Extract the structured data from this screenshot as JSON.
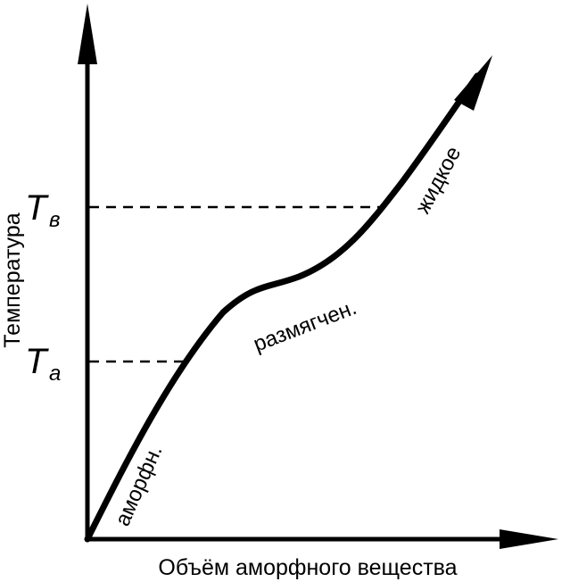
{
  "diagram": {
    "y_axis_label": "Температура",
    "x_axis_label": "Объём аморфного вещества",
    "levels": [
      {
        "main": "T",
        "sub": "а"
      },
      {
        "main": "T",
        "sub": "в"
      }
    ],
    "region_labels": {
      "amorphous": "аморфн.",
      "softened": "размягчен.",
      "liquid": "жидкое"
    },
    "colors": {
      "stroke": "#000000",
      "background": "#ffffff"
    }
  }
}
